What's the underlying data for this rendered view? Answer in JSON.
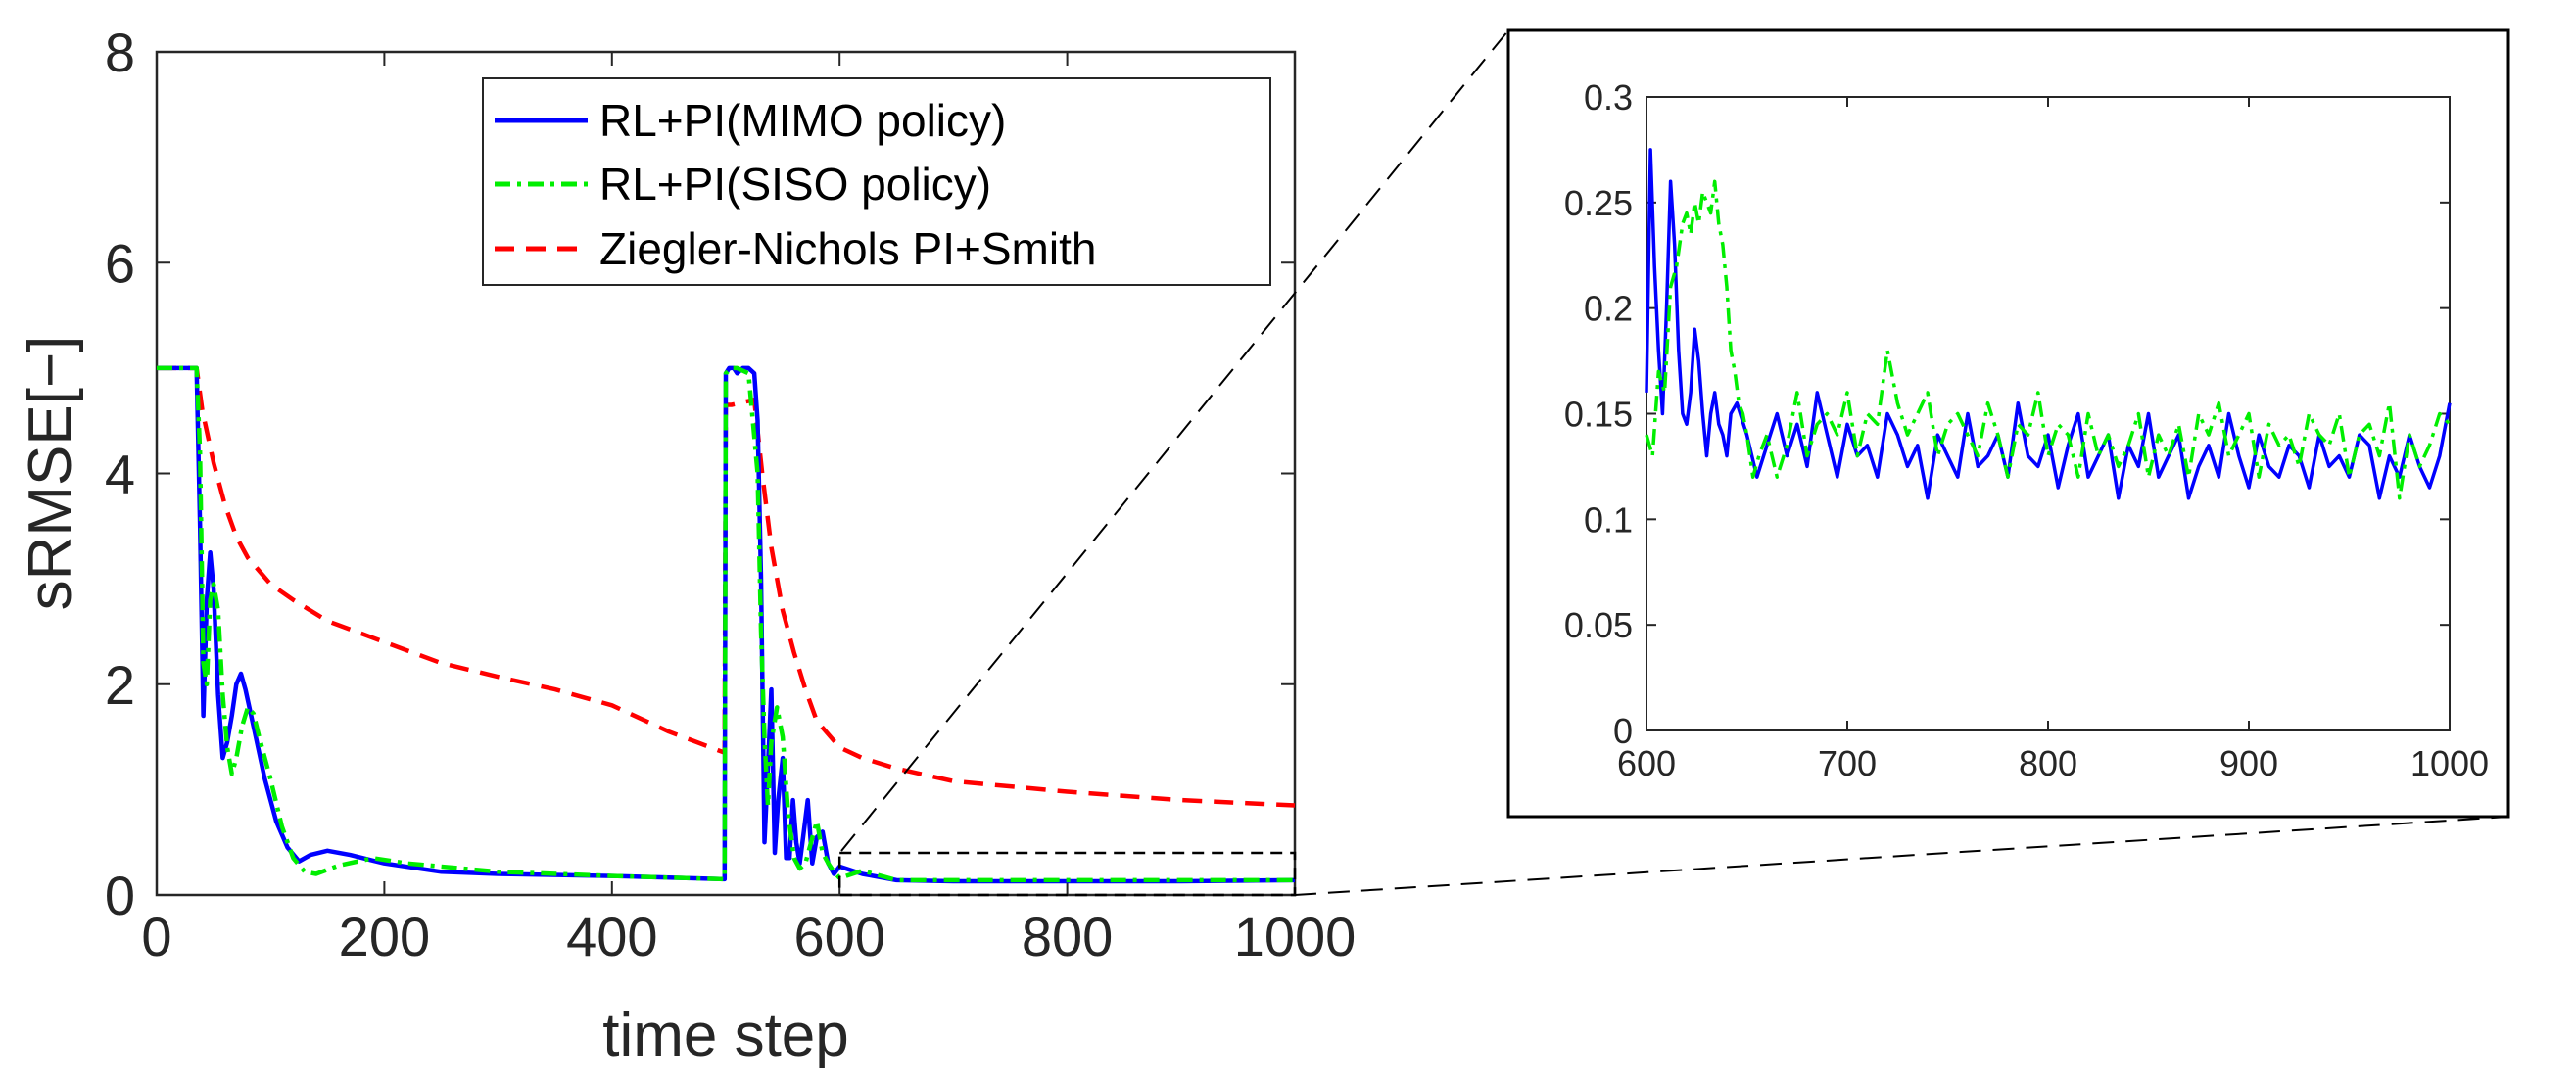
{
  "chart_data": [
    {
      "id": "main",
      "type": "line",
      "xlabel": "time step",
      "ylabel": "sRMSE[−]",
      "xlim": [
        0,
        1000
      ],
      "ylim": [
        0,
        8
      ],
      "xticks": [
        0,
        200,
        400,
        600,
        800,
        1000
      ],
      "yticks": [
        0,
        2,
        4,
        6,
        8
      ],
      "grid": false,
      "legend": {
        "placement": "top-right",
        "entries": [
          "RL+PI(MIMO policy)",
          "RL+PI(SISO policy)",
          "Ziegler-Nichols PI+Smith"
        ]
      },
      "zoom_box": {
        "x": [
          600,
          1000
        ],
        "y": [
          0,
          0.4
        ]
      },
      "series": [
        {
          "name": "RL+PI(MIMO policy)",
          "color": "#0000ff",
          "style": "solid",
          "x": [
            0,
            35,
            38,
            41,
            44,
            47,
            50,
            54,
            58,
            62,
            66,
            70,
            74,
            78,
            85,
            95,
            105,
            115,
            125,
            135,
            150,
            170,
            200,
            250,
            300,
            400,
            499,
            500,
            503,
            507,
            510,
            515,
            520,
            525,
            528,
            531,
            534,
            537,
            540,
            543,
            546,
            550,
            553,
            556,
            559,
            562,
            565,
            568,
            572,
            576,
            580,
            585,
            590,
            595,
            600,
            620,
            650,
            700,
            800,
            900,
            1000
          ],
          "y": [
            5.0,
            5.0,
            3.5,
            1.7,
            2.8,
            3.25,
            2.9,
            1.9,
            1.3,
            1.45,
            1.7,
            2.0,
            2.1,
            1.95,
            1.6,
            1.1,
            0.7,
            0.45,
            0.32,
            0.38,
            0.42,
            0.38,
            0.3,
            0.22,
            0.2,
            0.18,
            0.15,
            4.95,
            5.0,
            5.0,
            4.95,
            5.0,
            5.0,
            4.95,
            4.5,
            3.0,
            0.5,
            1.2,
            1.95,
            0.4,
            0.9,
            1.3,
            0.35,
            0.35,
            0.9,
            0.5,
            0.3,
            0.55,
            0.9,
            0.3,
            0.55,
            0.6,
            0.3,
            0.2,
            0.27,
            0.2,
            0.14,
            0.13,
            0.13,
            0.13,
            0.14
          ]
        },
        {
          "name": "RL+PI(SISO policy)",
          "color": "#00ee00",
          "style": "dash-dot",
          "x": [
            0,
            35,
            38,
            41,
            44,
            47,
            50,
            54,
            58,
            62,
            66,
            70,
            75,
            80,
            85,
            90,
            100,
            110,
            120,
            130,
            140,
            160,
            190,
            220,
            300,
            400,
            499,
            500,
            505,
            510,
            520,
            528,
            531,
            534,
            537,
            540,
            545,
            550,
            555,
            560,
            565,
            570,
            575,
            580,
            585,
            590,
            595,
            600,
            620,
            650,
            700,
            800,
            900,
            1000
          ],
          "y": [
            5.0,
            5.0,
            4.2,
            2.2,
            2.0,
            2.8,
            2.95,
            2.7,
            1.9,
            1.4,
            1.15,
            1.3,
            1.6,
            1.78,
            1.72,
            1.5,
            1.1,
            0.65,
            0.35,
            0.22,
            0.2,
            0.28,
            0.35,
            0.3,
            0.22,
            0.18,
            0.15,
            4.95,
            5.0,
            5.0,
            4.95,
            4.0,
            2.5,
            1.5,
            0.85,
            1.45,
            1.78,
            1.5,
            0.75,
            0.35,
            0.25,
            0.3,
            0.5,
            0.7,
            0.4,
            0.3,
            0.22,
            0.16,
            0.23,
            0.14,
            0.14,
            0.14,
            0.14,
            0.14
          ]
        },
        {
          "name": "Ziegler-Nichols PI+Smith",
          "color": "#ff0000",
          "style": "dashed",
          "x": [
            0,
            35,
            40,
            50,
            60,
            70,
            80,
            100,
            120,
            150,
            200,
            250,
            300,
            350,
            400,
            450,
            499,
            500,
            505,
            525,
            532,
            540,
            550,
            560,
            570,
            580,
            600,
            620,
            650,
            700,
            800,
            900,
            1000
          ],
          "y": [
            5.0,
            5.0,
            4.6,
            4.1,
            3.7,
            3.4,
            3.2,
            2.95,
            2.8,
            2.6,
            2.4,
            2.2,
            2.07,
            1.95,
            1.8,
            1.55,
            1.35,
            4.65,
            4.65,
            4.7,
            4.0,
            3.3,
            2.7,
            2.3,
            1.95,
            1.65,
            1.4,
            1.3,
            1.2,
            1.08,
            0.98,
            0.9,
            0.85
          ]
        }
      ]
    },
    {
      "id": "inset",
      "type": "line",
      "xlabel": "",
      "ylabel": "",
      "xlim": [
        600,
        1000
      ],
      "ylim": [
        0,
        0.3
      ],
      "xticks": [
        600,
        700,
        800,
        900,
        1000
      ],
      "yticks": [
        0,
        0.05,
        0.1,
        0.15,
        0.2,
        0.25,
        0.3
      ],
      "ytick_labels": [
        "0",
        "0.05",
        "0.1",
        "0.15",
        "0.2",
        "0.25",
        "0.3"
      ],
      "grid": false,
      "series": [
        {
          "name": "RL+PI(MIMO policy)",
          "color": "#0000ff",
          "style": "solid",
          "x": [
            600,
            602,
            604,
            606,
            608,
            610,
            612,
            614,
            616,
            618,
            620,
            622,
            624,
            626,
            628,
            630,
            632,
            634,
            636,
            638,
            640,
            642,
            645,
            650,
            655,
            660,
            665,
            670,
            675,
            680,
            685,
            690,
            695,
            700,
            705,
            710,
            715,
            720,
            725,
            730,
            735,
            740,
            745,
            750,
            755,
            760,
            765,
            770,
            775,
            780,
            785,
            790,
            795,
            800,
            805,
            810,
            815,
            820,
            825,
            830,
            835,
            840,
            845,
            850,
            855,
            860,
            865,
            870,
            875,
            880,
            885,
            890,
            895,
            900,
            905,
            910,
            915,
            920,
            925,
            930,
            935,
            940,
            945,
            950,
            955,
            960,
            965,
            970,
            975,
            980,
            985,
            990,
            995,
            1000
          ],
          "y": [
            0.16,
            0.275,
            0.22,
            0.18,
            0.15,
            0.2,
            0.26,
            0.23,
            0.18,
            0.15,
            0.145,
            0.16,
            0.19,
            0.175,
            0.15,
            0.13,
            0.15,
            0.16,
            0.145,
            0.14,
            0.13,
            0.15,
            0.155,
            0.14,
            0.12,
            0.135,
            0.15,
            0.13,
            0.145,
            0.125,
            0.16,
            0.14,
            0.12,
            0.145,
            0.13,
            0.135,
            0.12,
            0.15,
            0.14,
            0.125,
            0.135,
            0.11,
            0.14,
            0.13,
            0.12,
            0.15,
            0.125,
            0.13,
            0.14,
            0.12,
            0.155,
            0.13,
            0.125,
            0.14,
            0.115,
            0.135,
            0.15,
            0.12,
            0.13,
            0.14,
            0.11,
            0.135,
            0.125,
            0.15,
            0.12,
            0.13,
            0.14,
            0.11,
            0.125,
            0.135,
            0.12,
            0.15,
            0.13,
            0.115,
            0.14,
            0.125,
            0.12,
            0.135,
            0.13,
            0.115,
            0.14,
            0.125,
            0.13,
            0.12,
            0.14,
            0.135,
            0.11,
            0.13,
            0.12,
            0.14,
            0.125,
            0.115,
            0.13,
            0.155
          ]
        },
        {
          "name": "RL+PI(SISO policy)",
          "color": "#00ee00",
          "style": "dash-dot",
          "x": [
            600,
            603,
            606,
            609,
            612,
            615,
            618,
            620,
            622,
            624,
            626,
            628,
            630,
            632,
            634,
            636,
            638,
            640,
            642,
            644,
            646,
            648,
            650,
            653,
            656,
            660,
            665,
            670,
            675,
            680,
            685,
            690,
            695,
            700,
            705,
            710,
            715,
            720,
            725,
            730,
            735,
            740,
            745,
            750,
            755,
            760,
            765,
            770,
            775,
            780,
            785,
            790,
            795,
            800,
            805,
            810,
            815,
            820,
            825,
            830,
            835,
            840,
            845,
            850,
            855,
            860,
            865,
            870,
            875,
            880,
            885,
            890,
            895,
            900,
            905,
            910,
            915,
            920,
            925,
            930,
            935,
            940,
            945,
            950,
            955,
            960,
            965,
            970,
            975,
            980,
            985,
            990,
            995,
            1000
          ],
          "y": [
            0.14,
            0.13,
            0.17,
            0.16,
            0.21,
            0.22,
            0.24,
            0.245,
            0.235,
            0.25,
            0.24,
            0.255,
            0.25,
            0.245,
            0.26,
            0.24,
            0.23,
            0.21,
            0.18,
            0.17,
            0.155,
            0.15,
            0.14,
            0.12,
            0.13,
            0.14,
            0.12,
            0.135,
            0.16,
            0.13,
            0.145,
            0.15,
            0.14,
            0.16,
            0.13,
            0.15,
            0.145,
            0.18,
            0.155,
            0.14,
            0.15,
            0.16,
            0.13,
            0.145,
            0.15,
            0.14,
            0.13,
            0.155,
            0.14,
            0.12,
            0.145,
            0.14,
            0.16,
            0.13,
            0.145,
            0.14,
            0.12,
            0.15,
            0.13,
            0.14,
            0.125,
            0.135,
            0.15,
            0.12,
            0.14,
            0.13,
            0.145,
            0.12,
            0.15,
            0.14,
            0.155,
            0.13,
            0.14,
            0.15,
            0.12,
            0.145,
            0.135,
            0.14,
            0.125,
            0.15,
            0.14,
            0.135,
            0.15,
            0.12,
            0.14,
            0.145,
            0.13,
            0.155,
            0.11,
            0.14,
            0.125,
            0.135,
            0.15,
            0.145
          ]
        }
      ]
    }
  ]
}
